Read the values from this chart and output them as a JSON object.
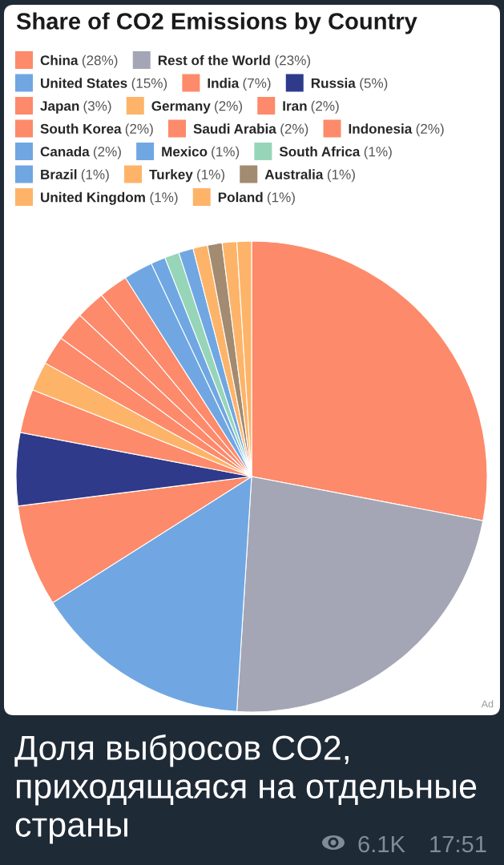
{
  "chart_data": {
    "type": "pie",
    "title": "Share of CO2 Emissions by Country",
    "categories": [
      "China",
      "Rest of the World",
      "United States",
      "India",
      "Russia",
      "Japan",
      "Germany",
      "Iran",
      "South Korea",
      "Saudi Arabia",
      "Indonesia",
      "Canada",
      "Mexico",
      "South Africa",
      "Brazil",
      "Turkey",
      "Australia",
      "United Kingdom",
      "Poland"
    ],
    "values": [
      28,
      23,
      15,
      7,
      5,
      3,
      2,
      2,
      2,
      2,
      2,
      2,
      1,
      1,
      1,
      1,
      1,
      1,
      1
    ],
    "value_labels": [
      "(28%)",
      "(23%)",
      "(15%)",
      "(7%)",
      "(5%)",
      "(3%)",
      "(2%)",
      "(2%)",
      "(2%)",
      "(2%)",
      "(2%)",
      "(2%)",
      "(1%)",
      "(1%)",
      "(1%)",
      "(1%)",
      "(1%)",
      "(1%)",
      "(1%)"
    ],
    "colors": [
      "#fd8a6a",
      "#a4a6b6",
      "#70a7e3",
      "#fd8a6a",
      "#2f3b8a",
      "#fd8a6a",
      "#fdb469",
      "#fd8a6a",
      "#fd8a6a",
      "#fd8a6a",
      "#fd8a6a",
      "#70a7e3",
      "#70a7e3",
      "#97d5b9",
      "#70a7e3",
      "#fdb469",
      "#a28b70",
      "#fdb469",
      "#fdb469"
    ],
    "legend": "top",
    "annotations": [
      "Доля выбросов CO2, приходящаяся на отдельные страны",
      "6.1K",
      "17:51",
      "Ad"
    ]
  }
}
